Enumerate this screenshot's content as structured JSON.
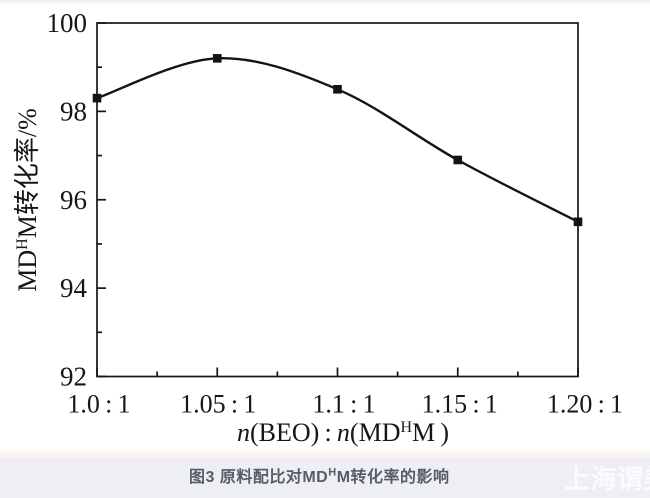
{
  "figure": {
    "caption_parts": [
      {
        "t": "图3 原料配比对MD"
      },
      {
        "t": "H",
        "sup": true
      },
      {
        "t": "M转化率的影响"
      }
    ],
    "watermark": "上海谓美"
  },
  "chart_data": {
    "type": "line",
    "title": "",
    "x_tick_labels": [
      "1.0 : 1",
      "1.05 : 1",
      "1.1 : 1",
      "1.15 : 1",
      "1.20 : 1"
    ],
    "x": [
      1.0,
      1.05,
      1.1,
      1.15,
      1.2
    ],
    "series": [
      {
        "name": "MDHM conversion rate",
        "values": [
          98.3,
          99.2,
          98.5,
          96.9,
          95.5
        ],
        "marker": "square",
        "color": "#141414"
      }
    ],
    "xlabel_text": "n(BEO) : n(MDᴴM )",
    "ylabel_text": "MDᴴM转化率/%",
    "xlabel_parts": [
      {
        "t": "n",
        "italic": true
      },
      {
        "t": "(BEO) : "
      },
      {
        "t": "n",
        "italic": true
      },
      {
        "t": "(MD"
      },
      {
        "t": "H",
        "sup": true
      },
      {
        "t": "M )"
      }
    ],
    "ylabel_parts": [
      {
        "t": "MD"
      },
      {
        "t": "H",
        "sup": true
      },
      {
        "t": "M转化率/%"
      }
    ],
    "xlim": [
      1.0,
      1.2
    ],
    "ylim": [
      92,
      100
    ],
    "y_major_ticks": [
      100,
      98,
      96,
      94,
      92
    ],
    "y_minor_ticks": [
      99,
      97,
      95,
      93
    ],
    "x_minor_ticks": [
      1.025,
      1.075,
      1.125,
      1.175
    ],
    "grid": false,
    "legend": "none"
  },
  "colors": {
    "chart_bg": "#ffffff",
    "axis_color": "#161616",
    "line_color": "#141414",
    "band_bg": "#edeff5",
    "caption_color": "#575d66",
    "watermark_color": "rgba(255,255,255,0.75)",
    "top_tint": "#f7ecec",
    "divider_tint": "#f9efee"
  }
}
